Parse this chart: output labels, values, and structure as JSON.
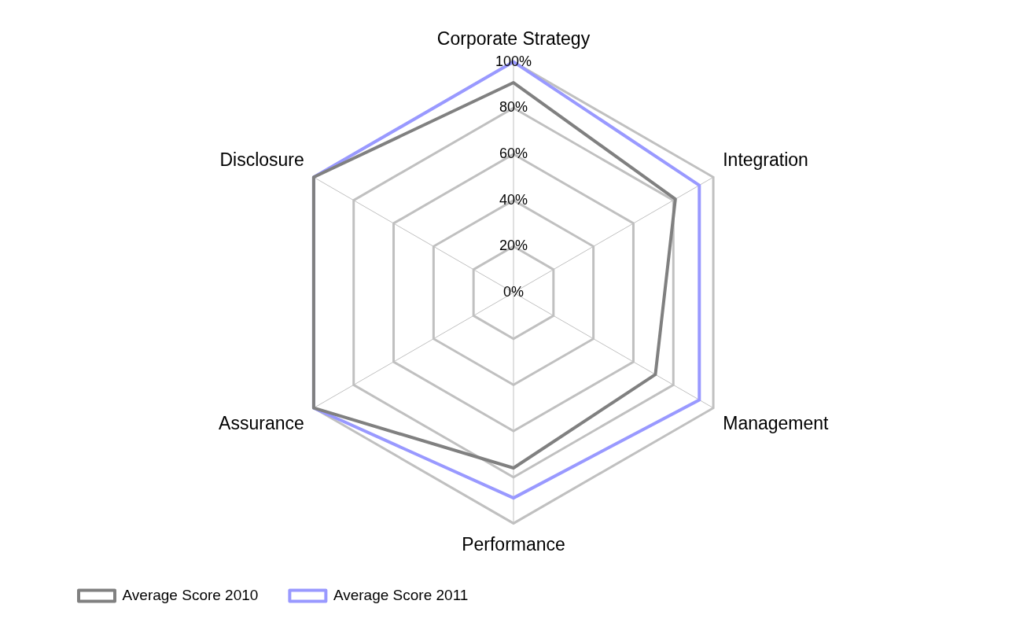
{
  "chart_data": {
    "type": "radar",
    "categories": [
      "Corporate Strategy",
      "Integration",
      "Management",
      "Performance",
      "Assurance",
      "Disclosure"
    ],
    "series": [
      {
        "name": "Average Score 2010",
        "color": "#808080",
        "values": [
          91,
          81,
          71,
          76,
          100,
          100
        ]
      },
      {
        "name": "Average Score 2011",
        "color": "#9999ff",
        "values": [
          100,
          93,
          93,
          89,
          100,
          100
        ]
      }
    ],
    "ylim": [
      0,
      100
    ],
    "yticks": [
      {
        "value": 0,
        "label": "0%"
      },
      {
        "value": 20,
        "label": "20%"
      },
      {
        "value": 40,
        "label": "40%"
      },
      {
        "value": 60,
        "label": "60%"
      },
      {
        "value": 80,
        "label": "80%"
      },
      {
        "value": 100,
        "label": "100%"
      }
    ],
    "grid": true,
    "legend": "bottom left",
    "marker": "none"
  }
}
